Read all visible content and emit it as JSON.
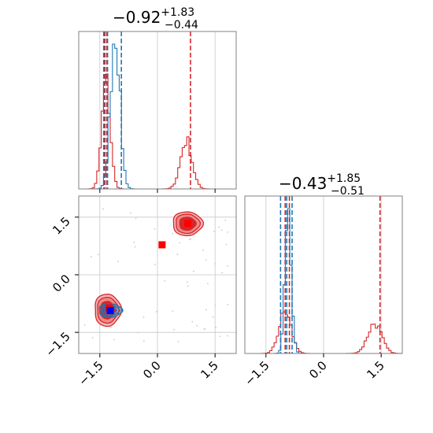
{
  "colors": {
    "red": "#d62728",
    "blue": "#1f77b4",
    "red_marker": "#ff0000",
    "blue_marker": "#0000ff",
    "grid": "#c8c8c8",
    "frame": "#808080",
    "contour_outer": "#f4b6b6",
    "contour_mid": "#ec8a8a",
    "contour_inner": "#d62728"
  },
  "chart_data": {
    "type": "corner",
    "parameters": [
      "p1",
      "p2"
    ],
    "tick_values": [
      -1.5,
      0.0,
      1.5
    ],
    "tick_labels": [
      "−1.5",
      "0.0",
      "1.5"
    ],
    "axis_range": [
      -2.05,
      2.05
    ],
    "grid": true,
    "titles": [
      {
        "main": "−0.92",
        "sup": "+1.83",
        "sub": "−0.44"
      },
      {
        "main": "−0.43",
        "sup": "+1.85",
        "sub": "−0.51"
      }
    ],
    "panels": [
      {
        "name": "marginal-p1",
        "type": "histogram",
        "series": [
          {
            "color": "red",
            "components": [
              {
                "center": -1.34,
                "sigma": 0.11,
                "weight": 0.62
              },
              {
                "center": 0.75,
                "sigma": 0.15,
                "weight": 0.38
              }
            ],
            "quantile_lines": [
              -1.37,
              -1.32,
              0.86
            ]
          },
          {
            "color": "blue",
            "components": [
              {
                "center": -1.1,
                "sigma": 0.12,
                "weight": 1.0
              }
            ],
            "quantile_lines": [
              -1.4,
              -1.3,
              -0.94
            ]
          }
        ]
      },
      {
        "name": "marginal-p2",
        "type": "histogram",
        "series": [
          {
            "color": "red",
            "components": [
              {
                "center": -1.0,
                "sigma": 0.16,
                "weight": 0.55
              },
              {
                "center": 1.33,
                "sigma": 0.18,
                "weight": 0.45
              }
            ],
            "quantile_lines": [
              -1.0,
              -0.89,
              1.47
            ]
          },
          {
            "color": "blue",
            "components": [
              {
                "center": -0.92,
                "sigma": 0.08,
                "weight": 1.0
              }
            ],
            "quantile_lines": [
              -1.12,
              -0.96,
              -0.82
            ]
          }
        ]
      },
      {
        "name": "joint-p1-p2",
        "type": "contour",
        "red_modes": [
          {
            "center": [
              -1.3,
              -0.92
            ],
            "sigma": [
              0.22,
              0.27
            ],
            "levels": [
              1.55,
              1.25,
              0.85
            ]
          },
          {
            "center": [
              0.78,
              1.33
            ],
            "sigma": [
              0.25,
              0.2
            ],
            "levels": [
              1.55,
              1.25,
              0.85
            ]
          }
        ],
        "blue_mode": {
          "center": [
            -1.23,
            -0.93
          ],
          "sigma": [
            0.17,
            0.1
          ],
          "levels": [
            1.75,
            1.35,
            0.9
          ]
        },
        "markers": [
          {
            "color": "red_marker",
            "x": -1.26,
            "y": -0.86
          },
          {
            "color": "red_marker",
            "x": 0.12,
            "y": 0.78
          },
          {
            "color": "red_marker",
            "x": 0.79,
            "y": 1.33
          },
          {
            "color": "blue_marker",
            "x": -1.23,
            "y": -0.93
          }
        ]
      }
    ]
  }
}
